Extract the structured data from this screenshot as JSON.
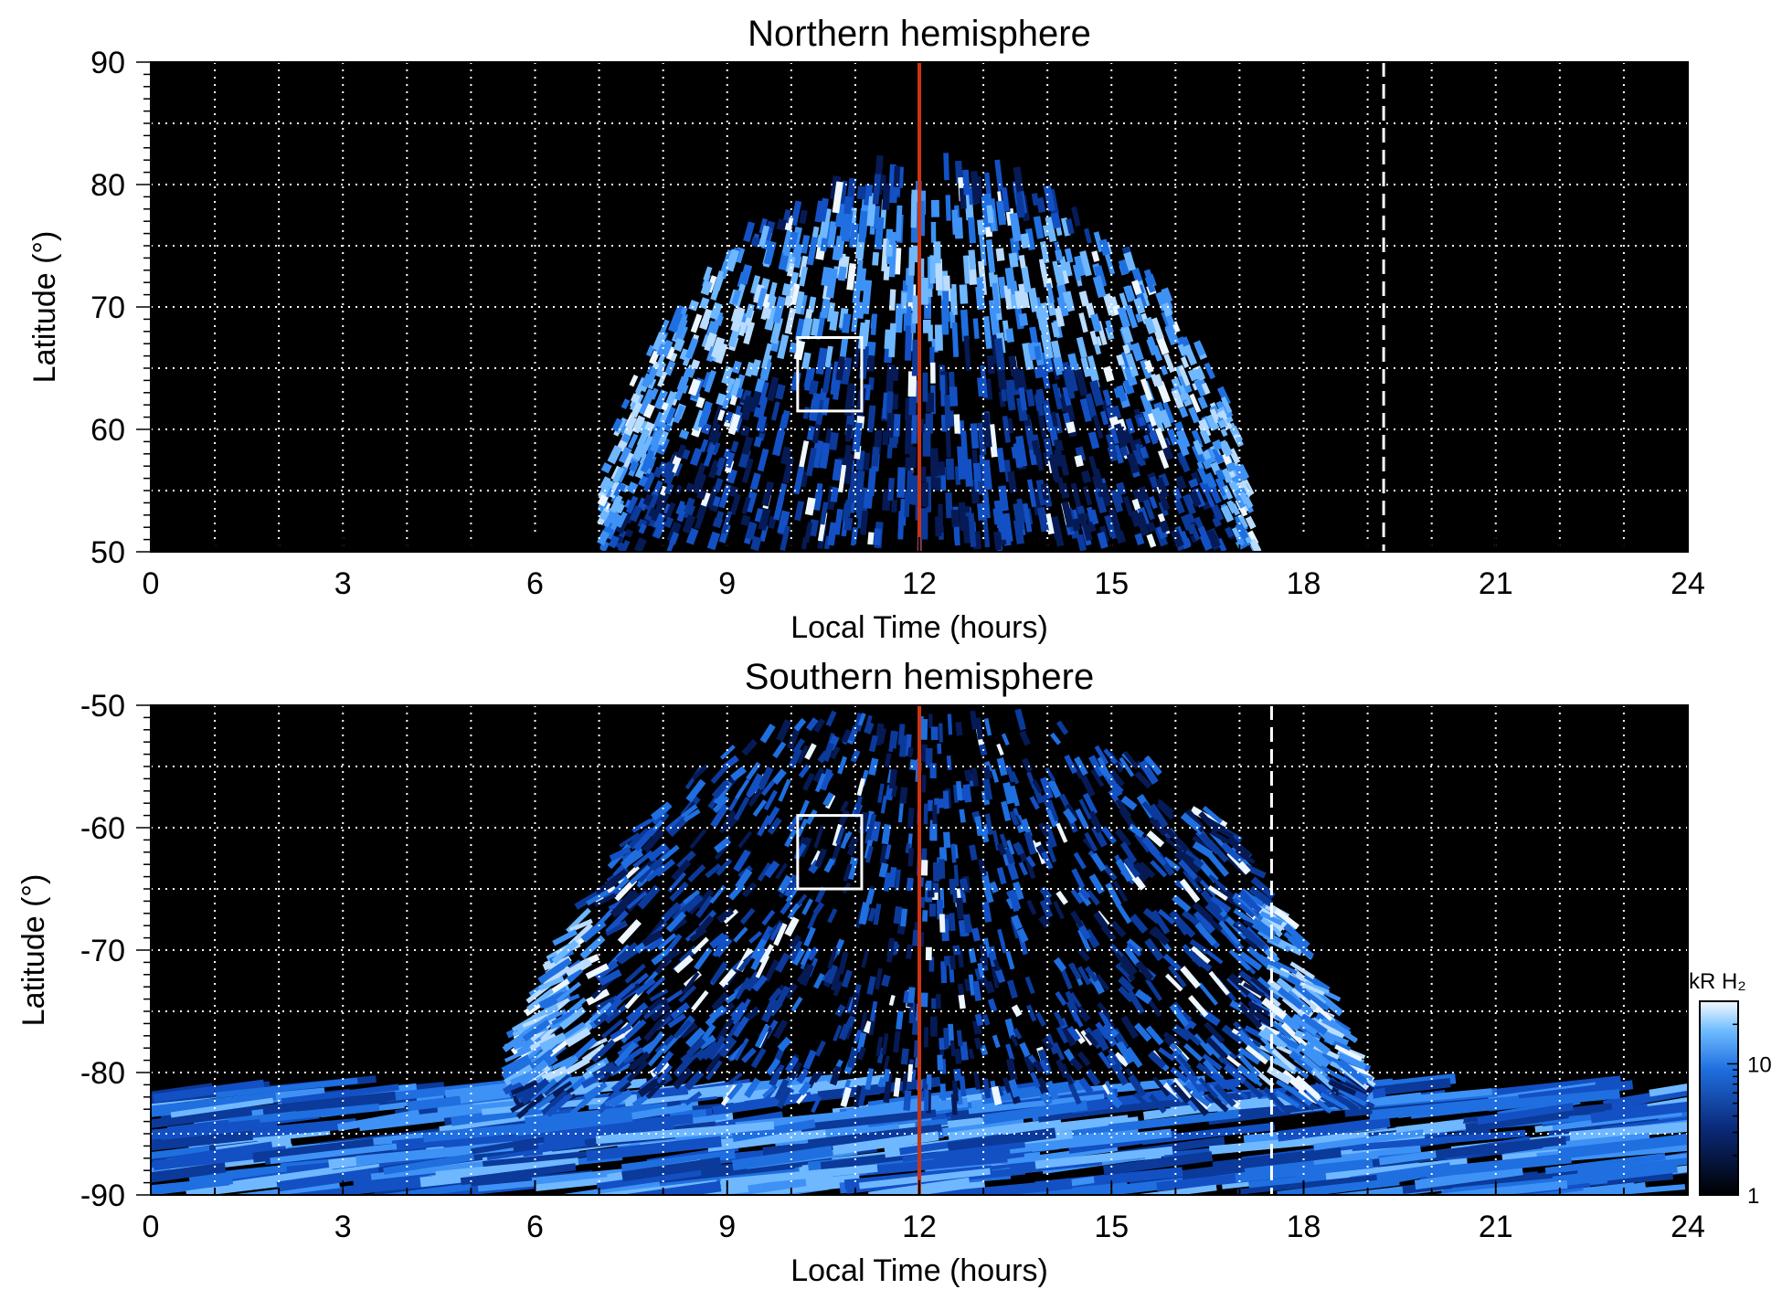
{
  "colors": {
    "background_plot": "#000000",
    "grid": "#ffffff",
    "noon_line": "#cc3311",
    "aurora_dark": "#0b3a9a",
    "aurora_mid": "#1f6fe0",
    "aurora_bright": "#5fb4ff",
    "aurora_white": "#e8f4ff"
  },
  "chart_data": [
    {
      "type": "heatmap",
      "title": "Northern hemisphere",
      "xlabel": "Local Time (hours)",
      "ylabel": "Latitude (°)",
      "xlim": [
        0,
        24
      ],
      "ylim": [
        50,
        90
      ],
      "x_ticks": [
        0,
        3,
        6,
        9,
        12,
        15,
        18,
        21,
        24
      ],
      "x_tick_labels": [
        "0",
        "3",
        "6",
        "9",
        "12",
        "15",
        "18",
        "21",
        "24"
      ],
      "y_ticks": [
        50,
        60,
        70,
        80,
        90
      ],
      "y_tick_labels": [
        "50",
        "60",
        "70",
        "80",
        "90"
      ],
      "grid": true,
      "vertical_lines": [
        {
          "x": 12,
          "style": "solid",
          "color": "#cc3311"
        },
        {
          "x": 19.25,
          "style": "dashed",
          "color": "#ffffff"
        }
      ],
      "box": {
        "x": [
          10.1,
          11.1
        ],
        "y": [
          61.5,
          67.5
        ]
      },
      "coverage": {
        "local_time_range": [
          7.0,
          17.3
        ],
        "max_latitude_at_noon": 80.5
      },
      "auroral_oval_peak_latitude": 72
    },
    {
      "type": "heatmap",
      "title": "Southern hemisphere",
      "xlabel": "Local Time (hours)",
      "ylabel": "Latitude (°)",
      "xlim": [
        0,
        24
      ],
      "ylim": [
        -90,
        -50
      ],
      "x_ticks": [
        0,
        3,
        6,
        9,
        12,
        15,
        18,
        21,
        24
      ],
      "x_tick_labels": [
        "0",
        "3",
        "6",
        "9",
        "12",
        "15",
        "18",
        "21",
        "24"
      ],
      "y_ticks": [
        -90,
        -80,
        -70,
        -60,
        -50
      ],
      "y_tick_labels": [
        "-90",
        "-80",
        "-70",
        "-60",
        "-50"
      ],
      "grid": true,
      "vertical_lines": [
        {
          "x": 12,
          "style": "solid",
          "color": "#cc3311"
        },
        {
          "x": 17.5,
          "style": "dashed",
          "color": "#ffffff"
        }
      ],
      "box": {
        "x": [
          10.1,
          11.1
        ],
        "y": [
          -65,
          -59
        ]
      },
      "coverage": {
        "local_time_range": [
          5.9,
          18.7
        ],
        "min_latitude_edge": -50
      },
      "auroral_oval_peak_latitude": -73
    }
  ],
  "colorbar": {
    "label": "kR H₂",
    "scale": "log",
    "range": [
      1,
      30
    ],
    "ticks": [
      1,
      10
    ],
    "tick_labels": [
      "1",
      "10"
    ]
  }
}
